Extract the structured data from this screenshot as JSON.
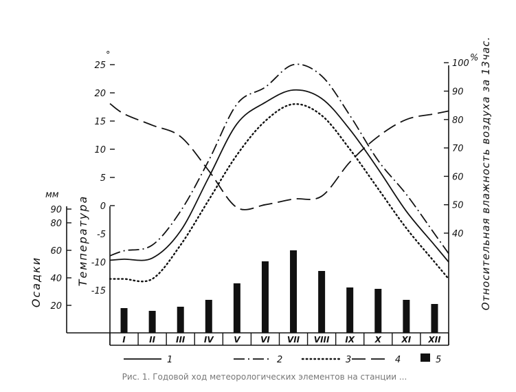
{
  "chart_data": {
    "type": "line+bar",
    "categories": [
      "I",
      "II",
      "III",
      "IV",
      "V",
      "VI",
      "VII",
      "VIII",
      "IX",
      "X",
      "XI",
      "XII"
    ],
    "temperature_axis": {
      "label": "Температура",
      "unit": "°",
      "ticks": [
        "25",
        "20",
        "15",
        "10",
        "5",
        "0",
        "-5",
        "-10",
        "-15"
      ],
      "ylim": [
        -15,
        25
      ]
    },
    "humidity_axis": {
      "label": "Относительная влажность воздуха за 13час.",
      "unit": "%",
      "ticks": [
        "100",
        "90",
        "80",
        "70",
        "60",
        "50",
        "40"
      ],
      "ylim": [
        35,
        100
      ]
    },
    "precipitation_axis": {
      "label": "Осадки",
      "unit": "мм",
      "ticks": [
        "90",
        "80",
        "60",
        "40",
        "20"
      ],
      "ylim": [
        0,
        90
      ]
    },
    "series": [
      {
        "legend": "1",
        "axis": "temperature",
        "style": "solid",
        "values": [
          -9.5,
          -9.3,
          -4.5,
          5,
          14.5,
          18.3,
          20.5,
          19,
          13.5,
          6.5,
          -1,
          -7
        ]
      },
      {
        "legend": "2",
        "axis": "temperature",
        "style": "dash-dot",
        "values": [
          -8,
          -7,
          -1,
          8,
          18,
          21,
          25,
          23,
          16,
          8,
          2,
          -5
        ]
      },
      {
        "legend": "3",
        "axis": "temperature",
        "style": "dotted",
        "values": [
          -13,
          -13,
          -7,
          1,
          9,
          15,
          18,
          16,
          10,
          3,
          -4,
          -10
        ]
      },
      {
        "legend": "4",
        "axis": "humidity",
        "style": "long-dash",
        "values": [
          82,
          78,
          74,
          62,
          49,
          50,
          52,
          53,
          65,
          74,
          80,
          82
        ]
      },
      {
        "legend": "5",
        "axis": "precipitation",
        "style": "bar",
        "values": [
          18,
          16,
          19,
          24,
          36,
          52,
          60,
          45,
          33,
          32,
          24,
          21
        ]
      }
    ],
    "legend": [
      "1",
      "2",
      "3",
      "4",
      "5"
    ],
    "caption": "Рис. 1. Годовой ход метеорологических элементов на станции ..."
  }
}
